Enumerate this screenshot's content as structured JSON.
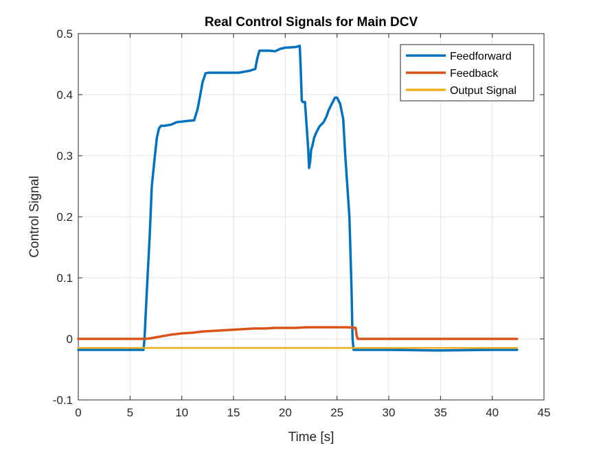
{
  "chart_data": {
    "type": "line",
    "title": "Real Control Signals for Main DCV",
    "xlabel": "Time [s]",
    "ylabel": "Control Signal",
    "xlim": [
      0,
      45
    ],
    "ylim": [
      -0.1,
      0.5
    ],
    "xticks": [
      0,
      5,
      10,
      15,
      20,
      25,
      30,
      35,
      40,
      45
    ],
    "yticks": [
      -0.1,
      0,
      0.1,
      0.2,
      0.3,
      0.4,
      0.5
    ],
    "xtick_labels": [
      "0",
      "5",
      "10",
      "15",
      "20",
      "25",
      "30",
      "35",
      "40",
      "45"
    ],
    "ytick_labels": [
      "-0.1",
      "0",
      "0.1",
      "0.2",
      "0.3",
      "0.4",
      "0.5"
    ],
    "grid": true,
    "legend_position": "top-right",
    "series": [
      {
        "name": "Feedforward",
        "color": "#0072BD",
        "x": [
          0,
          6.3,
          6.4,
          6.6,
          6.9,
          7.1,
          7.4,
          7.6,
          7.8,
          8.0,
          8.3,
          9.0,
          9.5,
          10.0,
          10.6,
          11.2,
          11.5,
          11.6,
          11.9,
          12.0,
          12.3,
          12.6,
          13.0,
          14.0,
          14.5,
          15.5,
          16.5,
          17.1,
          17.3,
          17.5,
          18.0,
          18.5,
          19.0,
          19.5,
          20.0,
          21.0,
          21.4,
          21.5,
          21.6,
          21.7,
          21.9,
          22.2,
          22.3,
          22.4,
          22.5,
          22.6,
          22.8,
          23.0,
          23.3,
          23.7,
          24.0,
          24.2,
          24.5,
          24.8,
          25.0,
          25.3,
          25.6,
          25.8,
          26.0,
          26.2,
          26.3,
          26.4,
          26.5,
          26.6,
          27.0,
          30.0,
          35.0,
          40.0,
          42.4
        ],
        "y": [
          -0.018,
          -0.018,
          0.0,
          0.07,
          0.17,
          0.25,
          0.3,
          0.33,
          0.345,
          0.349,
          0.349,
          0.351,
          0.355,
          0.356,
          0.357,
          0.358,
          0.375,
          0.383,
          0.41,
          0.42,
          0.435,
          0.436,
          0.436,
          0.436,
          0.436,
          0.436,
          0.439,
          0.442,
          0.46,
          0.472,
          0.472,
          0.472,
          0.471,
          0.475,
          0.477,
          0.478,
          0.48,
          0.44,
          0.39,
          0.388,
          0.388,
          0.315,
          0.28,
          0.29,
          0.31,
          0.315,
          0.33,
          0.338,
          0.348,
          0.355,
          0.365,
          0.375,
          0.385,
          0.395,
          0.395,
          0.385,
          0.36,
          0.3,
          0.25,
          0.2,
          0.14,
          0.08,
          0.0,
          -0.018,
          -0.018,
          -0.018,
          -0.019,
          -0.018,
          -0.018
        ]
      },
      {
        "name": "Feedback",
        "color": "#D95319",
        "x": [
          0,
          6.5,
          7.0,
          8.0,
          9.0,
          10.0,
          11.0,
          12.0,
          13.0,
          14.0,
          15.0,
          16.0,
          17.0,
          18.0,
          19.0,
          20.0,
          21.0,
          22.0,
          23.0,
          24.0,
          25.0,
          26.0,
          26.8,
          26.9,
          27.0,
          30.0,
          35.0,
          40.0,
          42.4
        ],
        "y": [
          0,
          0,
          0.001,
          0.004,
          0.007,
          0.009,
          0.01,
          0.012,
          0.013,
          0.014,
          0.015,
          0.016,
          0.017,
          0.017,
          0.018,
          0.018,
          0.018,
          0.019,
          0.019,
          0.019,
          0.019,
          0.019,
          0.018,
          0.005,
          0,
          0,
          0,
          0,
          0
        ]
      },
      {
        "name": "Output Signal",
        "color": "#EDB120",
        "x": [
          0,
          5,
          10,
          15,
          20,
          25,
          26.5,
          30,
          35,
          40,
          42.4
        ],
        "y": [
          -0.015,
          -0.015,
          -0.015,
          -0.015,
          -0.015,
          -0.015,
          -0.015,
          -0.015,
          -0.015,
          -0.015,
          -0.015
        ]
      }
    ]
  }
}
